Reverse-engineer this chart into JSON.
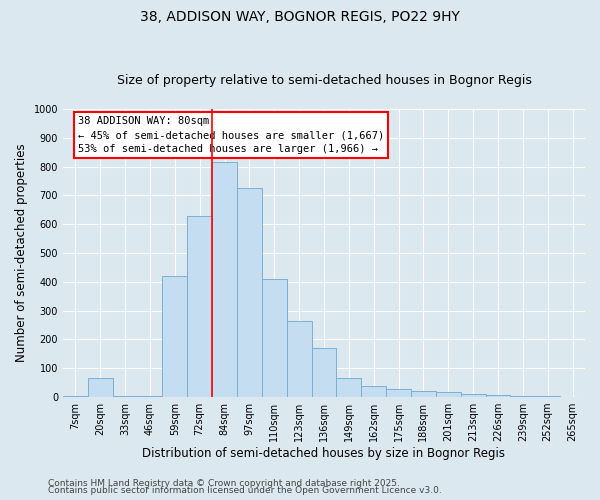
{
  "title1": "38, ADDISON WAY, BOGNOR REGIS, PO22 9HY",
  "title2": "Size of property relative to semi-detached houses in Bognor Regis",
  "xlabel": "Distribution of semi-detached houses by size in Bognor Regis",
  "ylabel": "Number of semi-detached properties",
  "categories": [
    "7sqm",
    "20sqm",
    "33sqm",
    "46sqm",
    "59sqm",
    "72sqm",
    "84sqm",
    "97sqm",
    "110sqm",
    "123sqm",
    "136sqm",
    "149sqm",
    "162sqm",
    "175sqm",
    "188sqm",
    "201sqm",
    "213sqm",
    "226sqm",
    "239sqm",
    "252sqm",
    "265sqm"
  ],
  "values": [
    5,
    65,
    5,
    5,
    420,
    630,
    815,
    725,
    410,
    265,
    170,
    65,
    40,
    28,
    20,
    18,
    10,
    6,
    5,
    3,
    2
  ],
  "bar_color": "#c5ddf0",
  "bar_edge_color": "#7ab0d4",
  "vline_color": "red",
  "vline_x_index": 6,
  "annotation_title": "38 ADDISON WAY: 80sqm",
  "annotation_line1": "← 45% of semi-detached houses are smaller (1,667)",
  "annotation_line2": "53% of semi-detached houses are larger (1,966) →",
  "ylim": [
    0,
    1000
  ],
  "yticks": [
    0,
    100,
    200,
    300,
    400,
    500,
    600,
    700,
    800,
    900,
    1000
  ],
  "footnote1": "Contains HM Land Registry data © Crown copyright and database right 2025.",
  "footnote2": "Contains public sector information licensed under the Open Government Licence v3.0.",
  "bg_color": "#dce8f0",
  "title_fontsize": 10,
  "subtitle_fontsize": 9,
  "tick_fontsize": 7,
  "axis_label_fontsize": 8.5,
  "footnote_fontsize": 6.5,
  "annot_fontsize": 7.5
}
